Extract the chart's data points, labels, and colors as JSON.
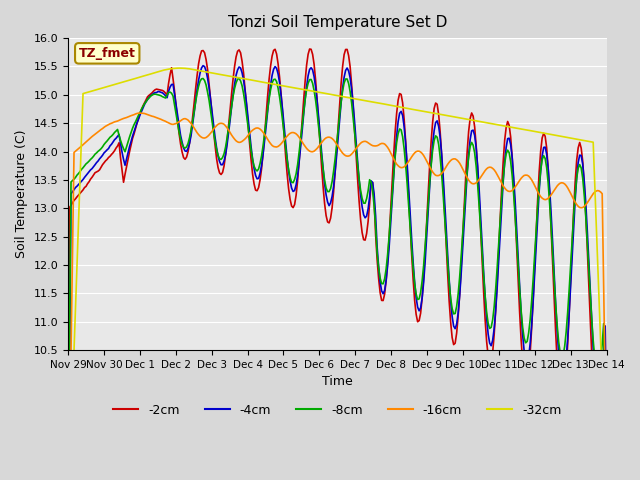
{
  "title": "Tonzi Soil Temperature Set D",
  "xlabel": "Time",
  "ylabel": "Soil Temperature (C)",
  "ylim": [
    10.5,
    16.0
  ],
  "legend_labels": [
    "-2cm",
    "-4cm",
    "-8cm",
    "-16cm",
    "-32cm"
  ],
  "legend_colors": [
    "#cc0000",
    "#0000cc",
    "#00aa00",
    "#ff8800",
    "#dddd00"
  ],
  "bg_color": "#d8d8d8",
  "plot_bg_color": "#e8e8e8",
  "annotation_text": "TZ_fmet",
  "annotation_color": "#8b0000",
  "annotation_bg": "#ffffcc",
  "x_tick_labels": [
    "Nov 29",
    "Nov 30",
    "Dec 1",
    "Dec 2",
    "Dec 3",
    "Dec 4",
    "Dec 5",
    "Dec 6",
    "Dec 7",
    "Dec 8",
    "Dec 9",
    "Dec 10",
    "Dec 11",
    "Dec 12",
    "Dec 13",
    "Dec 14"
  ],
  "x_tick_positions": [
    0,
    1,
    2,
    3,
    4,
    5,
    6,
    7,
    8,
    9,
    10,
    11,
    12,
    13,
    14,
    15
  ],
  "yticks": [
    10.5,
    11.0,
    11.5,
    12.0,
    12.5,
    13.0,
    13.5,
    14.0,
    14.5,
    15.0,
    15.5,
    16.0
  ],
  "n_points": 360,
  "xlim": [
    0,
    15
  ]
}
